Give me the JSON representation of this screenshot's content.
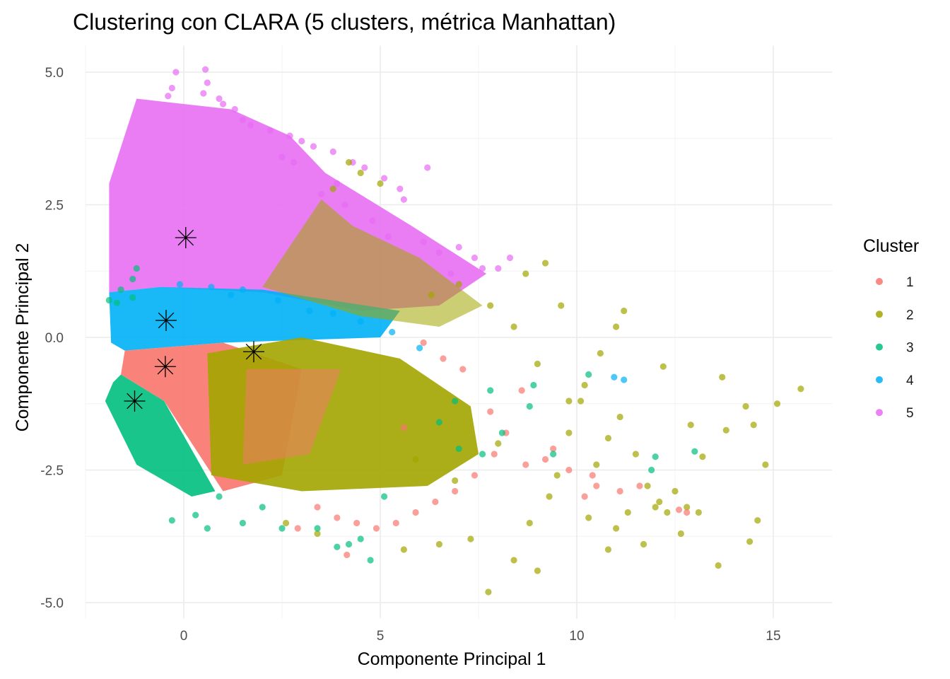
{
  "chart_data": {
    "type": "scatter",
    "title": "Clustering con CLARA (5 clusters, métrica Manhattan)",
    "xlabel": "Componente Principal 1",
    "ylabel": "Componente Principal 2",
    "xlim": [
      -2.5,
      16.5
    ],
    "ylim": [
      -5.3,
      5.5
    ],
    "x_ticks": [
      0,
      5,
      10,
      15
    ],
    "x_tick_labels": [
      "0",
      "5",
      "10",
      "15"
    ],
    "y_ticks": [
      -5,
      -2.5,
      0,
      2.5,
      5
    ],
    "y_tick_labels": [
      "-5.0",
      "-2.5",
      "0.0",
      "2.5",
      "5.0"
    ],
    "grid": true,
    "legend": {
      "title": "Cluster",
      "position": "right",
      "entries": [
        {
          "label": "1",
          "color": "#F8766D"
        },
        {
          "label": "2",
          "color": "#A3A500"
        },
        {
          "label": "3",
          "color": "#00BF7D"
        },
        {
          "label": "4",
          "color": "#00B0F6"
        },
        {
          "label": "5",
          "color": "#E76BF3"
        }
      ]
    },
    "medoids": [
      {
        "cluster": "5",
        "x": 0.05,
        "y": 1.88
      },
      {
        "cluster": "4",
        "x": -0.45,
        "y": 0.32
      },
      {
        "cluster": "2",
        "x": 1.78,
        "y": -0.27
      },
      {
        "cluster": "1",
        "x": -0.47,
        "y": -0.55
      },
      {
        "cluster": "3",
        "x": -1.25,
        "y": -1.2
      }
    ],
    "series": [
      {
        "name": "5",
        "color": "#E76BF3",
        "points": [
          [
            -0.2,
            5.0
          ],
          [
            0.55,
            5.05
          ],
          [
            0.6,
            4.8
          ],
          [
            0.5,
            4.6
          ],
          [
            -0.3,
            4.7
          ],
          [
            0.9,
            4.5
          ],
          [
            1.3,
            4.3
          ],
          [
            1.5,
            4.1
          ],
          [
            2.2,
            3.9
          ],
          [
            2.7,
            3.8
          ],
          [
            3.0,
            3.7
          ],
          [
            3.3,
            3.6
          ],
          [
            3.8,
            3.5
          ],
          [
            4.3,
            3.3
          ],
          [
            4.6,
            3.2
          ],
          [
            5.1,
            3.0
          ],
          [
            5.5,
            2.8
          ],
          [
            6.2,
            3.2
          ],
          [
            5.6,
            2.6
          ],
          [
            4.1,
            2.5
          ],
          [
            4.8,
            2.2
          ],
          [
            5.2,
            1.9
          ],
          [
            6.1,
            1.8
          ],
          [
            6.5,
            1.6
          ],
          [
            7.0,
            1.7
          ],
          [
            7.4,
            1.5
          ],
          [
            7.6,
            1.3
          ],
          [
            8.0,
            1.3
          ],
          [
            8.3,
            1.5
          ],
          [
            6.8,
            1.2
          ],
          [
            3.5,
            2.7
          ],
          [
            3.9,
            2.9
          ],
          [
            2.8,
            3.3
          ],
          [
            1.7,
            4.0
          ],
          [
            -0.4,
            4.55
          ],
          [
            1.0,
            4.4
          ],
          [
            2.5,
            3.4
          ]
        ]
      },
      {
        "name": "2",
        "color": "#A3A500",
        "points": [
          [
            15.7,
            -0.97
          ],
          [
            15.1,
            -1.25
          ],
          [
            14.8,
            -2.4
          ],
          [
            14.6,
            -3.45
          ],
          [
            14.4,
            -3.85
          ],
          [
            14.5,
            -1.65
          ],
          [
            14.3,
            -1.3
          ],
          [
            13.8,
            -1.75
          ],
          [
            13.7,
            -0.75
          ],
          [
            13.6,
            -4.3
          ],
          [
            13.2,
            -2.25
          ],
          [
            13.1,
            -3.3
          ],
          [
            12.9,
            -1.65
          ],
          [
            12.65,
            -3.7
          ],
          [
            12.3,
            -3.3
          ],
          [
            12.0,
            -3.2
          ],
          [
            11.7,
            -3.9
          ],
          [
            11.3,
            -3.3
          ],
          [
            10.8,
            -4.0
          ],
          [
            11.1,
            -1.5
          ],
          [
            12.2,
            -0.55
          ],
          [
            11.2,
            0.5
          ],
          [
            11.0,
            0.2
          ],
          [
            10.6,
            -0.3
          ],
          [
            10.2,
            -0.9
          ],
          [
            9.8,
            -1.8
          ],
          [
            9.5,
            -2.6
          ],
          [
            9.0,
            -4.4
          ],
          [
            8.4,
            -4.2
          ],
          [
            7.75,
            -4.8
          ],
          [
            9.2,
            1.4
          ],
          [
            8.7,
            1.2
          ],
          [
            9.6,
            0.6
          ],
          [
            10.1,
            -1.2
          ],
          [
            10.5,
            -2.4
          ],
          [
            11.5,
            -2.2
          ],
          [
            12.5,
            -2.9
          ],
          [
            12.8,
            -3.2
          ],
          [
            8.8,
            -3.5
          ],
          [
            7.3,
            -3.8
          ],
          [
            6.5,
            -3.9
          ],
          [
            5.6,
            -4.0
          ],
          [
            3.4,
            -3.7
          ],
          [
            3.8,
            2.8
          ],
          [
            4.5,
            3.1
          ],
          [
            5.0,
            2.9
          ],
          [
            4.2,
            3.3
          ],
          [
            6.3,
            0.8
          ],
          [
            7.0,
            1.0
          ],
          [
            7.8,
            0.6
          ],
          [
            8.4,
            0.2
          ],
          [
            9.0,
            -0.5
          ],
          [
            9.8,
            -1.2
          ],
          [
            10.8,
            -1.9
          ],
          [
            11.8,
            -2.8
          ],
          [
            12.1,
            -3.1
          ],
          [
            6.9,
            -2.7
          ],
          [
            5.9,
            -2.3
          ],
          [
            8.0,
            -2.0
          ],
          [
            9.3,
            -3.0
          ],
          [
            10.3,
            -3.4
          ],
          [
            11.0,
            -3.6
          ],
          [
            2.6,
            -3.5
          ]
        ]
      },
      {
        "name": "1",
        "color": "#F8766D",
        "points": [
          [
            12.6,
            -3.25
          ],
          [
            12.8,
            -3.3
          ],
          [
            11.6,
            -2.8
          ],
          [
            11.1,
            -2.9
          ],
          [
            10.5,
            -2.8
          ],
          [
            10.2,
            -3.0
          ],
          [
            9.8,
            -2.5
          ],
          [
            9.2,
            -2.3
          ],
          [
            8.7,
            -2.4
          ],
          [
            8.2,
            -1.8
          ],
          [
            7.8,
            -1.4
          ],
          [
            7.4,
            -2.6
          ],
          [
            6.9,
            -2.9
          ],
          [
            6.4,
            -3.1
          ],
          [
            5.9,
            -3.3
          ],
          [
            5.4,
            -3.5
          ],
          [
            4.9,
            -3.6
          ],
          [
            4.4,
            -3.5
          ],
          [
            3.9,
            -3.4
          ],
          [
            3.4,
            -3.2
          ],
          [
            2.9,
            -3.6
          ],
          [
            4.15,
            -4.1
          ],
          [
            6.6,
            -0.4
          ],
          [
            7.1,
            -0.6
          ],
          [
            6.1,
            -0.1
          ],
          [
            8.6,
            -1.0
          ],
          [
            9.4,
            -2.1
          ],
          [
            10.4,
            -2.6
          ],
          [
            5.6,
            -1.7
          ],
          [
            7.9,
            -2.2
          ]
        ]
      },
      {
        "name": "3",
        "color": "#00BF7D",
        "points": [
          [
            13.0,
            -2.15
          ],
          [
            12.0,
            -2.25
          ],
          [
            11.9,
            -2.5
          ],
          [
            10.3,
            -0.7
          ],
          [
            9.4,
            -2.2
          ],
          [
            8.8,
            -1.3
          ],
          [
            8.1,
            -1.8
          ],
          [
            7.6,
            -2.2
          ],
          [
            7.0,
            -2.1
          ],
          [
            6.5,
            -1.6
          ],
          [
            5.1,
            -3.0
          ],
          [
            4.75,
            -4.2
          ],
          [
            4.5,
            -3.8
          ],
          [
            4.2,
            -3.9
          ],
          [
            3.9,
            -3.95
          ],
          [
            3.4,
            -3.6
          ],
          [
            2.5,
            -3.6
          ],
          [
            2.0,
            -3.2
          ],
          [
            1.5,
            -3.5
          ],
          [
            0.6,
            -3.6
          ],
          [
            0.3,
            -3.35
          ],
          [
            -0.3,
            -3.45
          ],
          [
            0.9,
            -3.0
          ],
          [
            -1.2,
            1.3
          ],
          [
            -1.3,
            1.1
          ],
          [
            -1.9,
            0.7
          ],
          [
            -1.7,
            0.65
          ],
          [
            -1.3,
            0.75
          ],
          [
            -1.6,
            0.9
          ],
          [
            8.9,
            -0.9
          ],
          [
            7.8,
            -1.0
          ],
          [
            6.9,
            -1.2
          ]
        ]
      },
      {
        "name": "4",
        "color": "#00B0F6",
        "points": [
          [
            10.95,
            -0.75
          ],
          [
            11.2,
            -0.8
          ],
          [
            3.2,
            0.5
          ],
          [
            4.5,
            0.3
          ],
          [
            5.3,
            0.1
          ],
          [
            6.0,
            -0.2
          ],
          [
            2.4,
            0.7
          ],
          [
            1.5,
            0.9
          ],
          [
            0.7,
            0.95
          ],
          [
            -0.1,
            1.0
          ],
          [
            1.2,
            0.8
          ],
          [
            3.8,
            0.45
          ]
        ]
      }
    ]
  }
}
